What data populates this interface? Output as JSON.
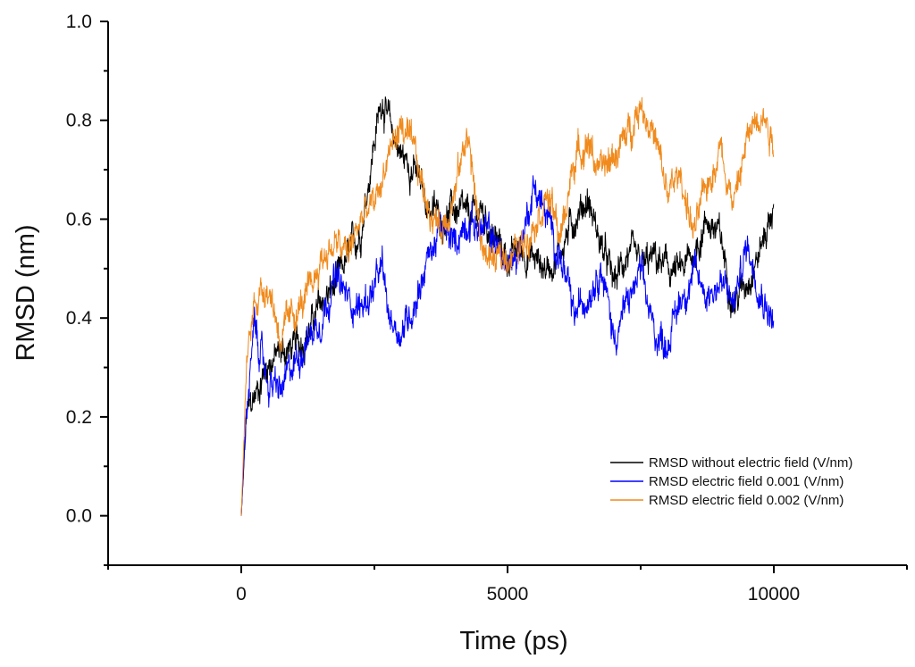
{
  "chart_data": {
    "type": "line",
    "title": "",
    "xlabel": "Time (ps)",
    "ylabel": "RMSD (nm)",
    "xlim": [
      -2500,
      12500
    ],
    "ylim": [
      -0.1,
      1.0
    ],
    "x_ticks": [
      0,
      5000,
      10000
    ],
    "x_tick_labels": [
      "0",
      "5000",
      "10000"
    ],
    "y_ticks": [
      0.0,
      0.2,
      0.4,
      0.6,
      0.8,
      1.0
    ],
    "y_tick_labels": [
      "0.0",
      "0.2",
      "0.4",
      "0.6",
      "0.8",
      "1.0"
    ],
    "grid": false,
    "legend_position": "bottom-right",
    "x": [
      0,
      100,
      250,
      500,
      750,
      1000,
      1250,
      1500,
      1750,
      2000,
      2250,
      2500,
      2650,
      2750,
      3000,
      3250,
      3500,
      3750,
      4000,
      4250,
      4500,
      4750,
      5000,
      5250,
      5500,
      5750,
      6000,
      6250,
      6500,
      6750,
      7000,
      7250,
      7500,
      7750,
      8000,
      8250,
      8500,
      8750,
      9000,
      9250,
      9500,
      9750,
      10000
    ],
    "series": [
      {
        "name": "RMSD without electric field (V/nm)",
        "color": "#000000",
        "values": [
          0.0,
          0.2,
          0.24,
          0.31,
          0.33,
          0.34,
          0.37,
          0.43,
          0.46,
          0.52,
          0.58,
          0.76,
          0.85,
          0.8,
          0.73,
          0.7,
          0.63,
          0.6,
          0.62,
          0.6,
          0.62,
          0.56,
          0.52,
          0.54,
          0.52,
          0.5,
          0.54,
          0.6,
          0.64,
          0.55,
          0.47,
          0.53,
          0.5,
          0.52,
          0.5,
          0.49,
          0.53,
          0.6,
          0.56,
          0.43,
          0.48,
          0.54,
          0.63
        ]
      },
      {
        "name": "RMSD electric field 0.001 (V/nm)",
        "color": "#0000ff",
        "values": [
          0.0,
          0.22,
          0.38,
          0.27,
          0.25,
          0.31,
          0.36,
          0.4,
          0.48,
          0.44,
          0.42,
          0.46,
          0.5,
          0.41,
          0.37,
          0.43,
          0.52,
          0.58,
          0.55,
          0.6,
          0.58,
          0.56,
          0.5,
          0.55,
          0.67,
          0.6,
          0.52,
          0.4,
          0.45,
          0.51,
          0.36,
          0.43,
          0.49,
          0.37,
          0.35,
          0.44,
          0.49,
          0.45,
          0.47,
          0.43,
          0.55,
          0.46,
          0.39
        ]
      },
      {
        "name": "RMSD electric field 0.002 (V/nm)",
        "color": "#f08a1c",
        "values": [
          0.0,
          0.3,
          0.44,
          0.47,
          0.36,
          0.41,
          0.44,
          0.52,
          0.55,
          0.53,
          0.6,
          0.63,
          0.68,
          0.73,
          0.79,
          0.73,
          0.63,
          0.58,
          0.65,
          0.78,
          0.55,
          0.51,
          0.53,
          0.54,
          0.6,
          0.65,
          0.56,
          0.72,
          0.76,
          0.69,
          0.73,
          0.77,
          0.84,
          0.77,
          0.65,
          0.69,
          0.57,
          0.67,
          0.75,
          0.63,
          0.76,
          0.83,
          0.76
        ]
      }
    ]
  }
}
